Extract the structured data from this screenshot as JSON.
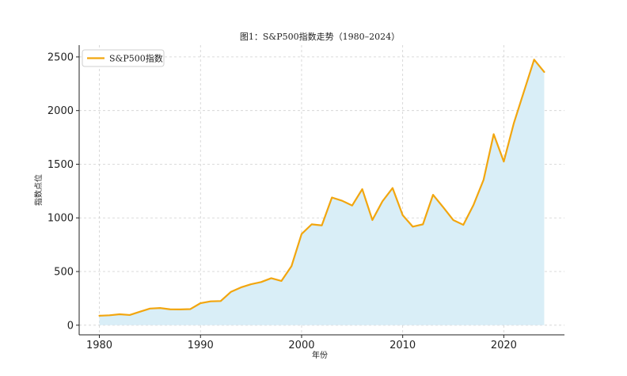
{
  "chart_data": {
    "type": "area",
    "title": "图1：S&P500指数走势（1980–2024）",
    "xlabel": "年份",
    "ylabel": "指数点位",
    "xlim": [
      1978,
      2026
    ],
    "ylim": [
      -90,
      2610
    ],
    "x_ticks": [
      1980,
      1990,
      2000,
      2010,
      2020
    ],
    "y_ticks": [
      0,
      500,
      1000,
      1500,
      2000,
      2500
    ],
    "grid": true,
    "legend_position": "top-left",
    "series": [
      {
        "name": "S&P500指数",
        "color": "#f2a60f",
        "fill": "#d9eef7",
        "x": [
          1980,
          1981,
          1982,
          1983,
          1984,
          1985,
          1986,
          1987,
          1988,
          1989,
          1990,
          1991,
          1992,
          1993,
          1994,
          1995,
          1996,
          1997,
          1998,
          1999,
          2000,
          2001,
          2002,
          2003,
          2004,
          2005,
          2006,
          2007,
          2008,
          2009,
          2010,
          2011,
          2012,
          2013,
          2014,
          2015,
          2016,
          2017,
          2018,
          2019,
          2020,
          2021,
          2022,
          2023,
          2024
        ],
        "values": [
          88,
          92,
          102,
          95,
          125,
          155,
          160,
          148,
          147,
          150,
          205,
          222,
          225,
          310,
          352,
          382,
          402,
          438,
          412,
          550,
          850,
          940,
          930,
          1190,
          1160,
          1115,
          1268,
          980,
          1155,
          1278,
          1025,
          918,
          940,
          1215,
          1100,
          980,
          935,
          1120,
          1355,
          1780,
          1525,
          1885,
          2180,
          2475,
          2360
        ]
      }
    ]
  }
}
